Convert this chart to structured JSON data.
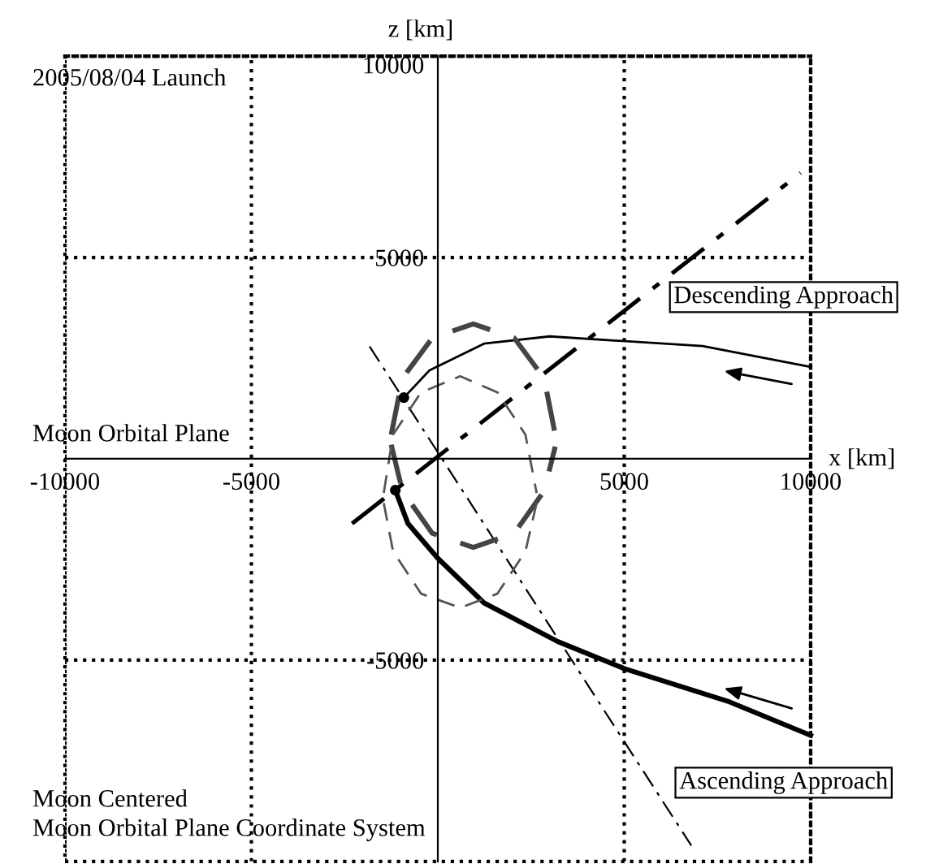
{
  "chart_data": {
    "type": "line",
    "xlabel": "x [km]",
    "ylabel": "z [km]",
    "xlim": [
      -10000,
      10000
    ],
    "ylim": [
      -10000,
      10000
    ],
    "xticks": [
      -10000,
      -5000,
      5000,
      10000
    ],
    "yticks": [
      -5000,
      5000,
      10000
    ],
    "grid": true,
    "legend": false,
    "annotations": [
      "2005/08/04 Launch",
      "Moon Orbital Plane",
      "Moon Centered",
      "Moon Orbital Plane Coordinate System"
    ],
    "series": [
      {
        "name": "Descending Approach",
        "color": "#000000",
        "line_style": "solid",
        "x": [
          -910,
          -220,
          1240,
          3000,
          7100,
          10000
        ],
        "values": [
          1520,
          2200,
          2860,
          3040,
          2800,
          2280
        ]
      },
      {
        "name": "Ascending Approach",
        "color": "#000000",
        "line_style": "solid",
        "x": [
          -1140,
          -800,
          0,
          1240,
          3220,
          5000,
          7830,
          10000
        ],
        "values": [
          -780,
          -1610,
          -2470,
          -3580,
          -4540,
          -5210,
          -6040,
          -6870
        ]
      },
      {
        "color": "#000000",
        "line_style": "dashdot",
        "x": [
          -2300,
          9730
        ],
        "values": [
          -1610,
          7100
        ]
      },
      {
        "color": "#000000",
        "line_style": "dashdot",
        "x": [
          -1830,
          6800
        ],
        "values": [
          2790,
          -9610
        ]
      },
      {
        "color": "#444444",
        "line_style": "dashed",
        "x": [
          -1250,
          -950,
          -150,
          950,
          2050,
          2850,
          3150
        ],
        "values": [
          600,
          2000,
          3000,
          3350,
          3000,
          2000,
          600
        ]
      },
      {
        "color": "#444444",
        "line_style": "dashed",
        "x": [
          -1250,
          -950,
          -150,
          950,
          2050,
          2850,
          3150
        ],
        "values": [
          350,
          -800,
          -1850,
          -2200,
          -1850,
          -800,
          300
        ]
      },
      {
        "color": "#555555",
        "line_style": "dashed",
        "x": [
          -1450,
          -1200,
          -450,
          600,
          1600,
          2350,
          2650
        ],
        "values": [
          -850,
          600,
          1650,
          2050,
          1650,
          600,
          -850
        ]
      },
      {
        "color": "#555555",
        "line_style": "dashed",
        "x": [
          -1450,
          -1200,
          -450,
          600,
          1600,
          2350,
          2650
        ],
        "values": [
          -1100,
          -2300,
          -3350,
          -3700,
          -3350,
          -2300,
          -1100
        ]
      },
      {
        "type": "scatter",
        "color": "#000000",
        "marker": "circle",
        "x": [
          -910,
          -1140
        ],
        "values": [
          1520,
          -780
        ]
      }
    ]
  }
}
